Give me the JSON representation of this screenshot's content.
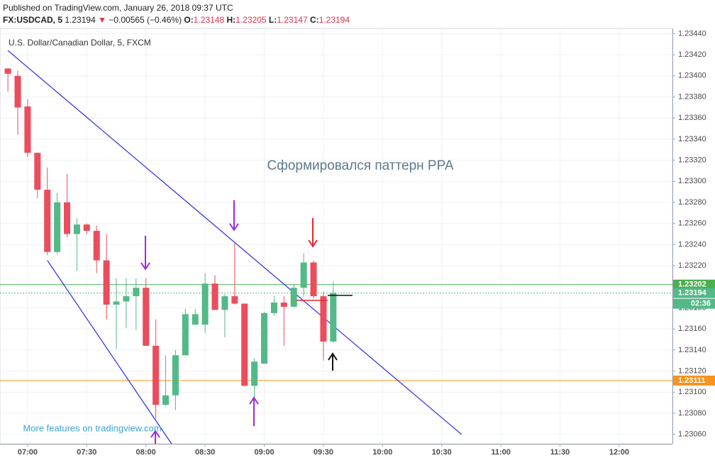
{
  "header": {
    "published": "Published on TradingView.com, January 26, 2018 09:37 UTC",
    "symbol": "FX:USDCAD, 5",
    "last": "1.23194",
    "change_arrow": "▼",
    "change": "−0.00565 (−0.46%)",
    "o_label": "O:",
    "o": "1.23148",
    "h_label": "H:",
    "h": "1.23205",
    "l_label": "L:",
    "l": "1.23147",
    "c_label": "C:",
    "c": "1.23194"
  },
  "chart_data": {
    "type": "candlestick",
    "title": "U.S. Dollar/Canadian Dollar, 5, FXCM",
    "annotation": "Сформировался паттерн PPA",
    "footer_link": "More features on tradingview.com",
    "x": [
      "06:50",
      "06:55",
      "07:00",
      "07:05",
      "07:10",
      "07:15",
      "07:20",
      "07:25",
      "07:30",
      "07:35",
      "07:40",
      "07:45",
      "07:50",
      "07:55",
      "08:00",
      "08:05",
      "08:10",
      "08:15",
      "08:20",
      "08:25",
      "08:30",
      "08:35",
      "08:40",
      "08:45",
      "08:50",
      "08:55",
      "09:00",
      "09:05",
      "09:10",
      "09:15",
      "09:20",
      "09:25",
      "09:30",
      "09:35"
    ],
    "open": [
      1.23407,
      1.234,
      1.23371,
      1.23327,
      1.23292,
      1.23233,
      1.2328,
      1.2325,
      1.23259,
      1.23253,
      1.23225,
      1.23183,
      1.23186,
      1.23191,
      1.23199,
      1.23144,
      1.23088,
      1.23097,
      1.23135,
      1.23164,
      1.23164,
      1.23203,
      1.23178,
      1.23191,
      1.23184,
      1.23106,
      1.23127,
      1.23175,
      1.23185,
      1.23181,
      1.23199,
      1.23223,
      1.23191,
      1.23148
    ],
    "high": [
      1.23407,
      1.23405,
      1.23378,
      1.23327,
      1.23313,
      1.23289,
      1.23307,
      1.23265,
      1.2326,
      1.23258,
      1.2325,
      1.23208,
      1.23208,
      1.23208,
      1.23208,
      1.23169,
      1.23135,
      1.2314,
      1.23179,
      1.23179,
      1.23213,
      1.23211,
      1.23193,
      1.23241,
      1.23184,
      1.23132,
      1.23176,
      1.23191,
      1.23191,
      1.23203,
      1.23232,
      1.23225,
      1.23195,
      1.23205
    ],
    "low": [
      1.23385,
      1.23344,
      1.23323,
      1.23284,
      1.2323,
      1.23231,
      1.23247,
      1.23215,
      1.2325,
      1.23213,
      1.23169,
      1.23141,
      1.23161,
      1.23159,
      1.23144,
      1.23075,
      1.23087,
      1.23083,
      1.23135,
      1.23164,
      1.23156,
      1.23178,
      1.23152,
      1.23183,
      1.23106,
      1.23083,
      1.23127,
      1.23173,
      1.23144,
      1.23181,
      1.23191,
      1.23189,
      1.2313,
      1.23147
    ],
    "close": [
      1.23402,
      1.2337,
      1.23327,
      1.23292,
      1.23233,
      1.2328,
      1.2325,
      1.23259,
      1.23253,
      1.23225,
      1.23183,
      1.23186,
      1.23191,
      1.23199,
      1.23144,
      1.23088,
      1.23097,
      1.23135,
      1.23174,
      1.23174,
      1.23203,
      1.23178,
      1.23191,
      1.23184,
      1.23106,
      1.23129,
      1.23175,
      1.23185,
      1.23181,
      1.23199,
      1.23223,
      1.23191,
      1.23148,
      1.23194
    ],
    "up_color": "#53b987",
    "down_color": "#eb4d5c",
    "xlim": [
      "06:46",
      "12:27"
    ],
    "xticks": [
      "07:00",
      "07:30",
      "08:00",
      "08:30",
      "09:00",
      "09:30",
      "10:00",
      "10:30",
      "11:00",
      "11:30",
      "12:00"
    ],
    "ylim": [
      1.23051,
      1.23445
    ],
    "yticks": [
      {
        "value": 1.2306,
        "label": "1.23060"
      },
      {
        "value": 1.2308,
        "label": "1.23080"
      },
      {
        "value": 1.231,
        "label": "1.23100"
      },
      {
        "value": 1.2312,
        "label": "1.23120"
      },
      {
        "value": 1.2314,
        "label": "1.23140"
      },
      {
        "value": 1.2316,
        "label": "1.23160"
      },
      {
        "value": 1.2318,
        "label": "1.23180"
      },
      {
        "value": 1.2322,
        "label": "1.23220"
      },
      {
        "value": 1.2324,
        "label": "1.23240"
      },
      {
        "value": 1.2326,
        "label": "1.23260"
      },
      {
        "value": 1.2328,
        "label": "1.23280"
      },
      {
        "value": 1.233,
        "label": "1.23300"
      },
      {
        "value": 1.2332,
        "label": "1.23320"
      },
      {
        "value": 1.2334,
        "label": "1.23340"
      },
      {
        "value": 1.2336,
        "label": "1.23360"
      },
      {
        "value": 1.2338,
        "label": "1.23380"
      },
      {
        "value": 1.234,
        "label": "1.23400"
      },
      {
        "value": 1.2342,
        "label": "1.23420"
      },
      {
        "value": 1.2344,
        "label": "1.23440"
      }
    ],
    "grid": true,
    "hlines": [
      {
        "value": 1.23202,
        "color": "#4caf50",
        "dashed": false
      },
      {
        "value": 1.23194,
        "color": "#53b987",
        "dashed": true
      },
      {
        "value": 1.23111,
        "color": "#f7931e",
        "dashed": false
      }
    ],
    "countdown": "02:36",
    "trendlines": [
      {
        "x": [
          "06:50",
          "10:40"
        ],
        "y": [
          1.23424,
          1.2306
        ],
        "color": "#2a2ae8"
      },
      {
        "x": [
          "07:10",
          "08:13"
        ],
        "y": [
          1.23225,
          1.23051
        ],
        "color": "#2a2ae8"
      }
    ]
  }
}
